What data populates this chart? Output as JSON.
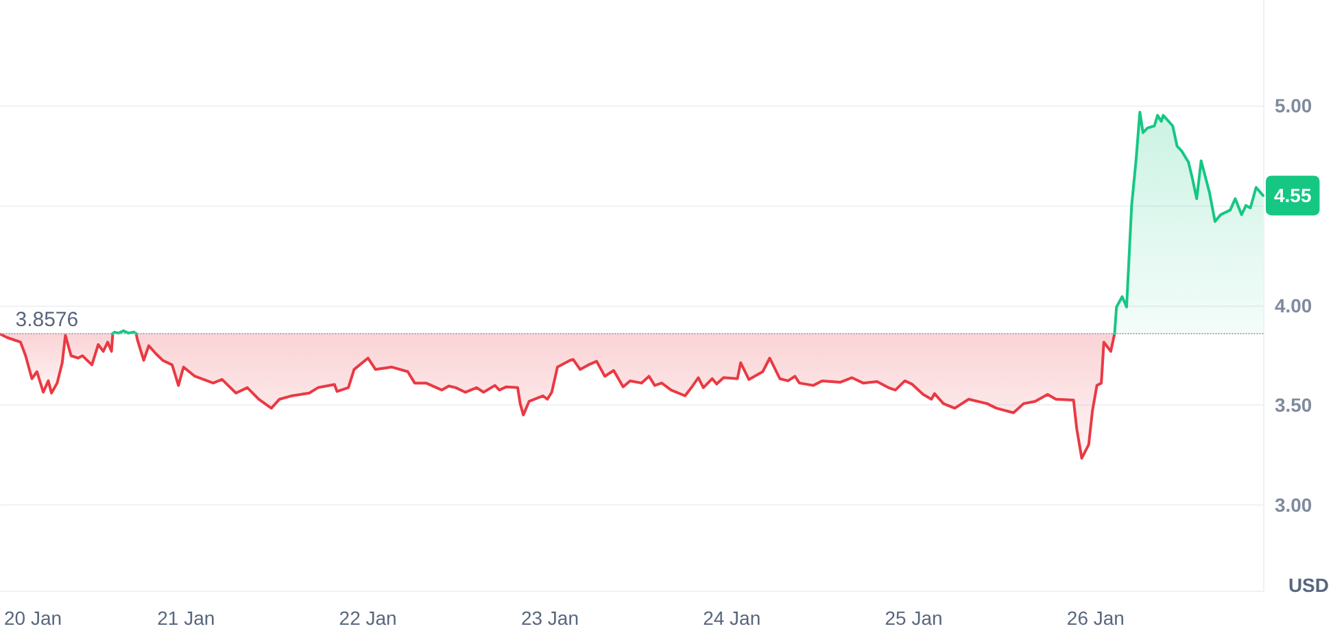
{
  "chart_data": {
    "type": "line",
    "ylabel": "USD",
    "xlim": [
      "--01-19T23:30",
      "--01-26T22:10"
    ],
    "xticks": [
      {
        "value": "--01-20",
        "label": "20 Jan"
      },
      {
        "value": "--01-21",
        "label": "21 Jan"
      },
      {
        "value": "--01-22",
        "label": "22 Jan"
      },
      {
        "value": "--01-23",
        "label": "23 Jan"
      },
      {
        "value": "--01-24",
        "label": "24 Jan"
      },
      {
        "value": "--01-25",
        "label": "25 Jan"
      },
      {
        "value": "--01-26",
        "label": "26 Jan"
      }
    ],
    "ylim": [
      2.57,
      5.53
    ],
    "yticks": [
      {
        "value": 3,
        "label": "3.00"
      },
      {
        "value": 3.5,
        "label": "3.50"
      },
      {
        "value": 4,
        "label": "4.00"
      },
      {
        "value": 4.5,
        "label": null
      },
      {
        "value": 5,
        "label": "5.00"
      }
    ],
    "grid": "y",
    "ref_lines": [
      {
        "axis": "y",
        "value": 3.8576,
        "label": "3.8576",
        "line_style": "dotted",
        "color": "#a1a7bb"
      }
    ],
    "series": [
      {
        "color": "#ea3943",
        "x": [
          "--01-19T23:30",
          "--01-20T00:25",
          "--01-20T02:10",
          "--01-20T02:50",
          "--01-20T03:40",
          "--01-20T04:20",
          "--01-20T05:10",
          "--01-20T05:50",
          "--01-20T06:15",
          "--01-20T07:00",
          "--01-20T07:40",
          "--01-20T08:05",
          "--01-20T08:50",
          "--01-20T09:45",
          "--01-20T10:20",
          "--01-20T11:35",
          "--01-20T12:25",
          "--01-20T13:05",
          "--01-20T13:40",
          "--01-20T14:10",
          "--01-20T14:20",
          "--01-20T16:00",
          "--01-20T17:25",
          "--01-20T17:35",
          "--01-20T18:25",
          "--01-20T19:05",
          "--01-20T20:00",
          "--01-20T20:55",
          "--01-20T22:10",
          "--01-20T23:00",
          "--01-20T23:40",
          "--01-21T01:10",
          "--01-21T03:35",
          "--01-21T04:45",
          "--01-21T06:35",
          "--01-21T08:05",
          "--01-21T09:35",
          "--01-21T11:15",
          "--01-21T12:20",
          "--01-21T13:50",
          "--01-21T16:15",
          "--01-21T17:25",
          "--01-21T19:35",
          "--01-21T19:55",
          "--01-21T21:25",
          "--01-21T22:10",
          "--01-22T00:00",
          "--01-22T01:00",
          "--01-22T03:10",
          "--01-22T05:15",
          "--01-22T06:10",
          "--01-22T07:40",
          "--01-22T09:45",
          "--01-22T10:40",
          "--01-22T11:35",
          "--01-22T12:50",
          "--01-22T14:20",
          "--01-22T15:15",
          "--01-22T16:45",
          "--01-22T17:20",
          "--01-22T18:15",
          "--01-22T19:45",
          "--01-22T20:05",
          "--01-22T20:30",
          "--01-22T21:15",
          "--01-22T23:05",
          "--01-22T23:40",
          "--01-23T00:15",
          "--01-23T01:00",
          "--01-23T02:40",
          "--01-23T03:05",
          "--01-23T04:00",
          "--01-23T05:05",
          "--01-23T06:10",
          "--01-23T07:15",
          "--01-23T08:25",
          "--01-23T09:40",
          "--01-23T10:35",
          "--01-23T12:05",
          "--01-23T13:05",
          "--01-23T13:50",
          "--01-23T14:45",
          "--01-23T16:00",
          "--01-23T17:50",
          "--01-23T18:40",
          "--01-23T19:35",
          "--01-23T20:15",
          "--01-23T21:25",
          "--01-23T22:00",
          "--01-23T22:55",
          "--01-24T00:45",
          "--01-24T01:10",
          "--01-24T02:15",
          "--01-24T04:05",
          "--01-24T05:00",
          "--01-24T06:20",
          "--01-24T07:25",
          "--01-24T08:20",
          "--01-24T08:55",
          "--01-24T10:45",
          "--01-24T11:55",
          "--01-24T14:20",
          "--01-24T15:50",
          "--01-24T17:20",
          "--01-24T19:10",
          "--01-24T20:40",
          "--01-24T21:35",
          "--01-24T22:50",
          "--01-24T23:45",
          "--01-25T01:15",
          "--01-25T02:20",
          "--01-25T02:45",
          "--01-25T03:55",
          "--01-25T05:25",
          "--01-25T07:15",
          "--01-25T09:40",
          "--01-25T10:55",
          "--01-25T13:10",
          "--01-25T14:30",
          "--01-25T16:00",
          "--01-25T17:40",
          "--01-25T18:45",
          "--01-25T21:05",
          "--01-25T21:30",
          "--01-25T22:10",
          "--01-25T23:05",
          "--01-25T23:35",
          "--01-26T00:10",
          "--01-26T00:45",
          "--01-26T01:05",
          "--01-26T02:00",
          "--01-26T02:30"
        ],
        "values": [
          3.855,
          3.838,
          3.815,
          3.747,
          3.632,
          3.667,
          3.564,
          3.621,
          3.56,
          3.61,
          3.712,
          3.849,
          3.747,
          3.735,
          3.747,
          3.701,
          3.803,
          3.769,
          3.815,
          3.769,
          3.858,
          null,
          3.858,
          3.827,
          3.724,
          3.797,
          3.758,
          3.724,
          3.701,
          3.598,
          3.69,
          3.644,
          3.61,
          3.628,
          3.56,
          3.587,
          3.529,
          3.484,
          3.529,
          3.545,
          3.56,
          3.587,
          3.603,
          3.568,
          3.587,
          3.678,
          3.735,
          3.678,
          3.69,
          3.667,
          3.61,
          3.61,
          3.575,
          3.595,
          3.587,
          3.564,
          3.587,
          3.564,
          3.598,
          3.575,
          3.591,
          3.587,
          3.507,
          3.45,
          3.518,
          3.546,
          3.529,
          3.564,
          3.69,
          3.724,
          3.728,
          3.678,
          3.701,
          3.719,
          3.644,
          3.673,
          3.591,
          3.621,
          3.61,
          3.644,
          3.598,
          3.61,
          3.575,
          3.546,
          3.587,
          3.637,
          3.587,
          3.632,
          3.605,
          3.637,
          3.632,
          3.712,
          3.628,
          3.667,
          3.735,
          3.632,
          3.621,
          3.644,
          3.61,
          3.598,
          3.621,
          3.614,
          3.637,
          3.61,
          3.617,
          3.587,
          3.575,
          3.621,
          3.605,
          3.553,
          3.529,
          3.557,
          3.507,
          3.484,
          3.529,
          3.507,
          3.484,
          3.461,
          3.507,
          3.518,
          3.553,
          3.529,
          3.525,
          3.382,
          3.233,
          3.301,
          3.473,
          3.598,
          3.61,
          3.815,
          3.769,
          3.858
        ],
        "lower": [
          3.855,
          3.838,
          3.815,
          3.747,
          3.632,
          3.667,
          3.564,
          3.621,
          3.56,
          3.61,
          3.712,
          3.849,
          3.747,
          3.735,
          3.747,
          3.701,
          3.803,
          3.769,
          3.815,
          3.769,
          3.858,
          null,
          3.858,
          3.827,
          3.724,
          3.797,
          3.758,
          3.724,
          3.701,
          3.598,
          3.69,
          3.644,
          3.61,
          3.628,
          3.56,
          3.587,
          3.529,
          3.484,
          3.529,
          3.545,
          3.56,
          3.587,
          3.603,
          3.568,
          3.587,
          3.678,
          3.735,
          3.678,
          3.69,
          3.667,
          3.61,
          3.61,
          3.575,
          3.595,
          3.587,
          3.564,
          3.587,
          3.564,
          3.598,
          3.575,
          3.591,
          3.587,
          3.507,
          3.45,
          3.518,
          3.546,
          3.529,
          3.564,
          3.69,
          3.724,
          3.728,
          3.678,
          3.701,
          3.719,
          3.644,
          3.673,
          3.591,
          3.621,
          3.61,
          3.644,
          3.598,
          3.61,
          3.575,
          3.546,
          3.587,
          3.637,
          3.587,
          3.632,
          3.605,
          3.637,
          3.632,
          3.712,
          3.628,
          3.667,
          3.735,
          3.632,
          3.621,
          3.644,
          3.61,
          3.598,
          3.621,
          3.614,
          3.637,
          3.61,
          3.617,
          3.587,
          3.575,
          3.621,
          3.605,
          3.553,
          3.529,
          3.557,
          3.507,
          3.484,
          3.529,
          3.507,
          3.484,
          3.461,
          3.507,
          3.518,
          3.553,
          3.529,
          3.525,
          3.382,
          3.233,
          3.301,
          3.473,
          3.598,
          3.61,
          3.815,
          3.769,
          3.858
        ],
        "upper": [
          3.858,
          3.858,
          3.858,
          3.858,
          3.858,
          3.858,
          3.858,
          3.858,
          3.858,
          3.858,
          3.858,
          3.858,
          3.858,
          3.858,
          3.858,
          3.858,
          3.858,
          3.858,
          3.858,
          3.858,
          3.858,
          null,
          3.858,
          3.858,
          3.858,
          3.858,
          3.858,
          3.858,
          3.858,
          3.858,
          3.858,
          3.858,
          3.858,
          3.858,
          3.858,
          3.858,
          3.858,
          3.858,
          3.858,
          3.858,
          3.858,
          3.858,
          3.858,
          3.858,
          3.858,
          3.858,
          3.858,
          3.858,
          3.858,
          3.858,
          3.858,
          3.858,
          3.858,
          3.858,
          3.858,
          3.858,
          3.858,
          3.858,
          3.858,
          3.858,
          3.858,
          3.858,
          3.858,
          3.858,
          3.858,
          3.858,
          3.858,
          3.858,
          3.858,
          3.858,
          3.858,
          3.858,
          3.858,
          3.858,
          3.858,
          3.858,
          3.858,
          3.858,
          3.858,
          3.858,
          3.858,
          3.858,
          3.858,
          3.858,
          3.858,
          3.858,
          3.858,
          3.858,
          3.858,
          3.858,
          3.858,
          3.858,
          3.858,
          3.858,
          3.858,
          3.858,
          3.858,
          3.858,
          3.858,
          3.858,
          3.858,
          3.858,
          3.858,
          3.858,
          3.858,
          3.858,
          3.858,
          3.858,
          3.858,
          3.858,
          3.858,
          3.858,
          3.858,
          3.858,
          3.858,
          3.858,
          3.858,
          3.858,
          3.858,
          3.858,
          3.858,
          3.858,
          3.858,
          3.858,
          3.858,
          3.858,
          3.858,
          3.858,
          3.858,
          3.858,
          3.858,
          3.858
        ]
      },
      {
        "color": "#16c784",
        "x": [
          "--01-20T14:20",
          "--01-20T14:35",
          "--01-20T15:05",
          "--01-20T15:45",
          "--01-20T16:25",
          "--01-20T17:05",
          "--01-20T17:25",
          "--01-22T00:00",
          "--01-26T02:30",
          "--01-26T02:45",
          "--01-26T03:30",
          "--01-26T04:05",
          "--01-26T04:45",
          "--01-26T05:20",
          "--01-26T05:50",
          "--01-26T06:15",
          "--01-26T06:50",
          "--01-26T07:45",
          "--01-26T08:10",
          "--01-26T08:40",
          "--01-26T08:55",
          "--01-26T10:10",
          "--01-26T10:45",
          "--01-26T11:20",
          "--01-26T12:15",
          "--01-26T12:45",
          "--01-26T13:20",
          "--01-26T13:55",
          "--01-26T15:00",
          "--01-26T15:45",
          "--01-26T16:30",
          "--01-26T17:45",
          "--01-26T18:25",
          "--01-26T19:15",
          "--01-26T19:50",
          "--01-26T20:25",
          "--01-26T21:10",
          "--01-26T22:05"
        ],
        "values": [
          3.858,
          3.865,
          3.86,
          3.872,
          3.86,
          3.866,
          3.858,
          null,
          3.858,
          3.991,
          4.043,
          3.991,
          4.5,
          4.728,
          4.968,
          4.865,
          4.888,
          4.899,
          4.952,
          4.922,
          4.952,
          4.899,
          4.797,
          4.774,
          4.717,
          4.637,
          4.534,
          4.724,
          4.568,
          4.42,
          4.454,
          4.477,
          4.534,
          4.454,
          4.5,
          4.488,
          4.591,
          4.55
        ],
        "lower": [
          null,
          null,
          null,
          null,
          null,
          null,
          null,
          null,
          3.858,
          3.858,
          3.858,
          3.858,
          3.858,
          3.858,
          3.858,
          3.858,
          3.858,
          3.858,
          3.858,
          3.858,
          3.858,
          3.858,
          3.858,
          3.858,
          3.858,
          3.858,
          3.858,
          3.858,
          3.858,
          3.858,
          3.858,
          3.858,
          3.858,
          3.858,
          3.858,
          3.858,
          3.858,
          3.858
        ],
        "upper": [
          null,
          null,
          null,
          null,
          null,
          null,
          null,
          null,
          3.858,
          3.991,
          4.043,
          3.991,
          4.5,
          4.728,
          4.968,
          4.865,
          4.888,
          4.899,
          4.952,
          4.922,
          4.952,
          4.899,
          4.797,
          4.774,
          4.717,
          4.637,
          4.534,
          4.724,
          4.568,
          4.42,
          4.454,
          4.477,
          4.534,
          4.454,
          4.5,
          4.488,
          4.591,
          4.55
        ],
        "value_labels": [
          null,
          null,
          null,
          null,
          null,
          null,
          null,
          null,
          null,
          null,
          null,
          null,
          null,
          null,
          null,
          null,
          null,
          null,
          null,
          null,
          null,
          null,
          null,
          null,
          null,
          null,
          null,
          null,
          null,
          null,
          null,
          null,
          null,
          null,
          null,
          null,
          null,
          "4.55"
        ]
      }
    ]
  }
}
